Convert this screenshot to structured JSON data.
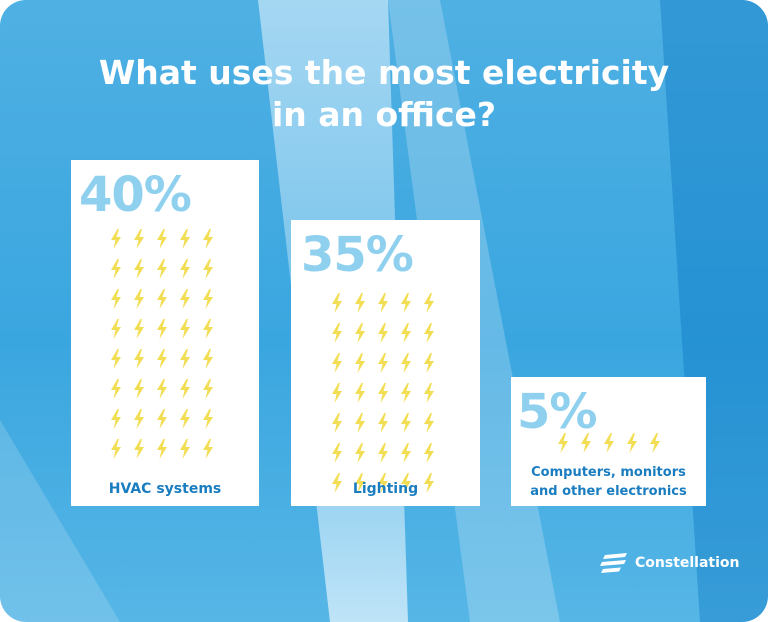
{
  "title": {
    "line1": "What uses the most electricity",
    "line2": "in an office?"
  },
  "chart_data": {
    "type": "bar",
    "title": "What uses the most electricity in an office?",
    "categories": [
      "HVAC systems",
      "Lighting",
      "Computers, monitors and other electronics"
    ],
    "values": [
      40,
      35,
      5
    ],
    "value_labels": [
      "40%",
      "35%",
      "5%"
    ],
    "unit": "%",
    "icon": "lightning-bolt-icon",
    "icon_color": "#f2de55",
    "icons_per_row": 5,
    "bar_colors": {
      "panel": "#ffffff",
      "percent_text": "#8fd0ef",
      "label_text": "#1a7dc0"
    }
  },
  "panels": [
    {
      "id": "hvac",
      "percent": "40%",
      "label_lines": [
        "HVAC systems"
      ],
      "bolt_rows": 8
    },
    {
      "id": "lighting",
      "percent": "35%",
      "label_lines": [
        "Lighting"
      ],
      "bolt_rows": 7
    },
    {
      "id": "computers",
      "percent": "5%",
      "label_lines": [
        "Computers, monitors",
        "and other electronics"
      ],
      "bolt_rows": 1
    }
  ],
  "brand": {
    "name": "Constellation",
    "icon": "constellation-logo-icon"
  },
  "colors": {
    "background": "#3aa6df",
    "title": "#ffffff",
    "bolt": "#f2de55"
  }
}
